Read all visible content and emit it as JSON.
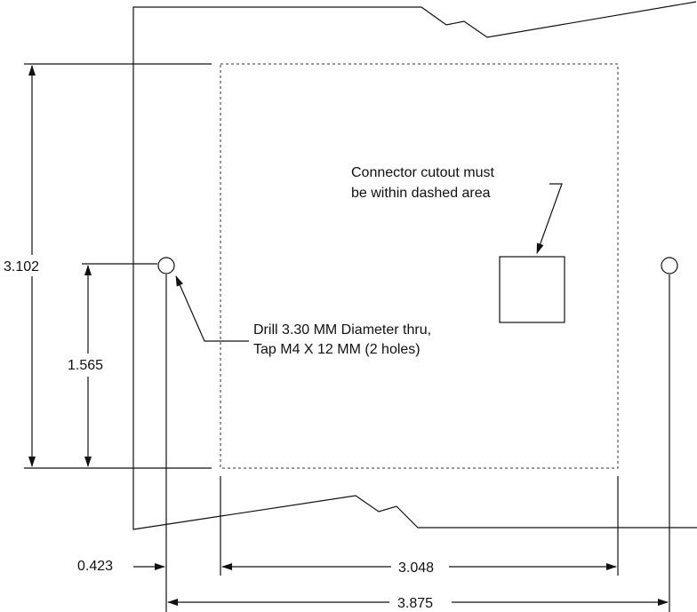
{
  "drawing": {
    "colors": {
      "line": "#111111",
      "background": "#ffffff"
    },
    "dimensions": {
      "overall_height": "3.102",
      "hole_height": "1.565",
      "edge_offset": "0.423",
      "cutout_width": "3.048",
      "hole_spacing": "3.875"
    },
    "notes": {
      "connector_line1": "Connector cutout must",
      "connector_line2": "be within dashed area",
      "drill_line1": "Drill 3.30 MM Diameter thru,",
      "drill_line2": "Tap M4 X 12 MM (2 holes)"
    }
  }
}
